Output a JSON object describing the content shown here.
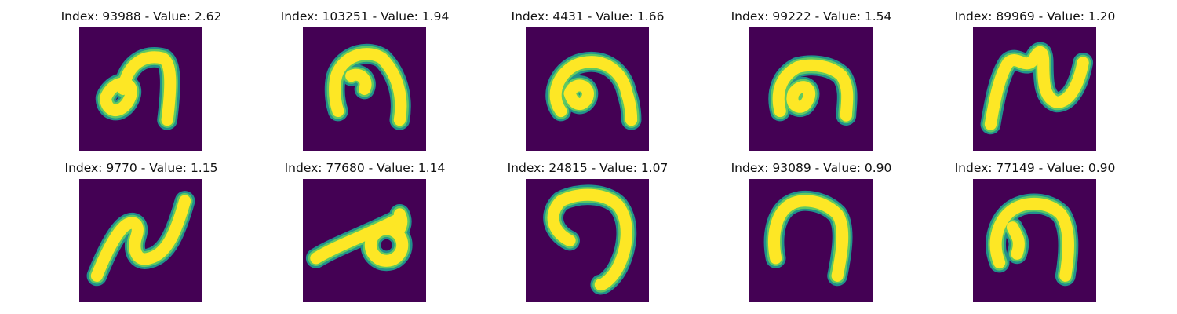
{
  "colors": {
    "background": "#440154",
    "stroke_edge": "#21918c",
    "stroke_mid": "#5ec962",
    "stroke_core": "#fde725"
  },
  "panels": [
    {
      "title": "Index: 93988 - Value: 2.62"
    },
    {
      "title": "Index: 103251 - Value: 1.94"
    },
    {
      "title": "Index: 4431 - Value: 1.66"
    },
    {
      "title": "Index: 99222 - Value: 1.54"
    },
    {
      "title": "Index: 89969 - Value: 1.20"
    },
    {
      "title": "Index: 9770 - Value: 1.15"
    },
    {
      "title": "Index: 77680 - Value: 1.14"
    },
    {
      "title": "Index: 24815 - Value: 1.07"
    },
    {
      "title": "Index: 93089 - Value: 0.90"
    },
    {
      "title": "Index: 77149 - Value: 0.90"
    }
  ]
}
